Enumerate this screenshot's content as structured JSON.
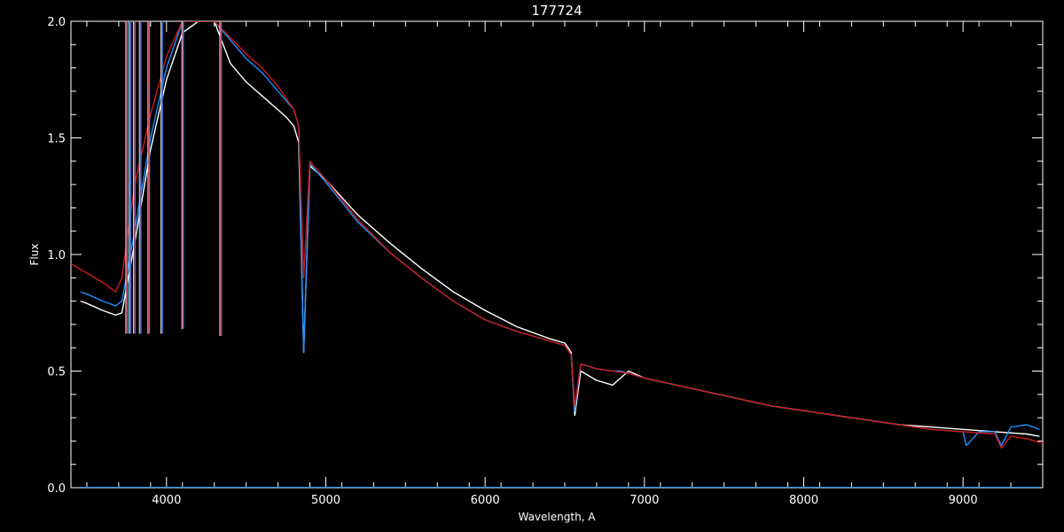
{
  "chart_data": {
    "type": "line",
    "title": "177724",
    "xlabel": "Wavelength, A",
    "ylabel": "Flux",
    "xlim": [
      3400,
      9500
    ],
    "ylim": [
      0.0,
      2.0
    ],
    "x_ticks": [
      4000,
      5000,
      6000,
      7000,
      8000,
      9000
    ],
    "x_tick_labels": [
      "4000",
      "5000",
      "6000",
      "7000",
      "8000",
      "9000"
    ],
    "y_ticks": [
      0.0,
      0.5,
      1.0,
      1.5,
      2.0
    ],
    "y_tick_labels": [
      "0.0",
      "0.5",
      "1.0",
      "1.5",
      "2.0"
    ],
    "grid": false,
    "background": "#000000",
    "series": [
      {
        "color": "#ffffff",
        "x": [
          3460,
          3500,
          3600,
          3680,
          3720,
          3760,
          3800,
          3900,
          4000,
          4100,
          4200,
          4300,
          4400,
          4500,
          4600,
          4700,
          4750,
          4800,
          4830,
          4861,
          4900,
          5000,
          5200,
          5400,
          5600,
          5800,
          6000,
          6200,
          6400,
          6500,
          6540,
          6563,
          6600,
          6700,
          6800,
          6850,
          6900,
          7000,
          7200,
          7400,
          7600,
          7800,
          8000,
          8200,
          8400,
          8500,
          8600,
          8800,
          9000,
          9200,
          9400,
          9480
        ],
        "y": [
          0.8,
          0.79,
          0.76,
          0.74,
          0.75,
          0.9,
          1.05,
          1.45,
          1.75,
          1.95,
          2.0,
          2.0,
          1.82,
          1.74,
          1.68,
          1.62,
          1.59,
          1.55,
          1.48,
          0.58,
          1.38,
          1.32,
          1.17,
          1.05,
          0.94,
          0.84,
          0.76,
          0.69,
          0.64,
          0.62,
          0.58,
          0.31,
          0.5,
          0.46,
          0.44,
          0.47,
          0.5,
          0.47,
          0.44,
          0.41,
          0.38,
          0.35,
          0.33,
          0.31,
          0.29,
          0.28,
          0.27,
          0.26,
          0.25,
          0.24,
          0.23,
          0.22
        ]
      },
      {
        "color": "#1e90ff",
        "x": [
          3460,
          3500,
          3600,
          3680,
          3720,
          3760,
          3800,
          3900,
          4000,
          4100,
          4200,
          4300,
          4400,
          4500,
          4600,
          4700,
          4750,
          4800,
          4830,
          4861,
          4900,
          5000,
          5200,
          5400,
          5600,
          5800,
          6000,
          6200,
          6400,
          6500,
          6540,
          6563,
          6600,
          6700,
          6800,
          6850,
          6900,
          7000,
          7200,
          7400,
          7600,
          7800,
          8000,
          8200,
          8400,
          8600,
          8800,
          9000,
          9020,
          9100,
          9200,
          9240,
          9300,
          9400,
          9480
        ],
        "y": [
          0.84,
          0.83,
          0.8,
          0.78,
          0.8,
          0.95,
          1.1,
          1.5,
          1.8,
          2.0,
          2.0,
          2.0,
          1.92,
          1.84,
          1.78,
          1.7,
          1.66,
          1.62,
          1.55,
          0.58,
          1.39,
          1.31,
          1.14,
          1.01,
          0.9,
          0.8,
          0.72,
          0.67,
          0.63,
          0.61,
          0.57,
          0.33,
          0.53,
          0.51,
          0.5,
          0.5,
          0.49,
          0.47,
          0.44,
          0.41,
          0.38,
          0.35,
          0.33,
          0.31,
          0.29,
          0.27,
          0.25,
          0.24,
          0.18,
          0.24,
          0.24,
          0.18,
          0.26,
          0.27,
          0.25
        ]
      },
      {
        "color": "#cc1a1a",
        "x": [
          3400,
          3500,
          3600,
          3680,
          3720,
          3760,
          3800,
          3900,
          4000,
          4100,
          4200,
          4300,
          4400,
          4500,
          4600,
          4700,
          4750,
          4800,
          4830,
          4861,
          4900,
          5000,
          5200,
          5400,
          5600,
          5800,
          6000,
          6200,
          6400,
          6500,
          6540,
          6563,
          6600,
          6700,
          6800,
          6900,
          7000,
          7200,
          7400,
          7600,
          7800,
          8000,
          8200,
          8400,
          8600,
          8800,
          9000,
          9200,
          9240,
          9300,
          9400,
          9500
        ],
        "y": [
          0.96,
          0.92,
          0.88,
          0.84,
          0.9,
          1.1,
          1.3,
          1.6,
          1.85,
          2.0,
          2.0,
          2.0,
          1.93,
          1.86,
          1.8,
          1.72,
          1.67,
          1.62,
          1.55,
          0.9,
          1.4,
          1.32,
          1.15,
          1.01,
          0.9,
          0.8,
          0.72,
          0.67,
          0.63,
          0.61,
          0.57,
          0.35,
          0.53,
          0.51,
          0.5,
          0.49,
          0.47,
          0.44,
          0.41,
          0.38,
          0.35,
          0.33,
          0.31,
          0.29,
          0.27,
          0.25,
          0.24,
          0.23,
          0.17,
          0.22,
          0.21,
          0.19
        ]
      },
      {
        "color": "#1e90ff",
        "x": [
          3460,
          9480
        ],
        "y": [
          0.0,
          0.0
        ]
      }
    ],
    "absorption_lines": [
      {
        "x": 3750,
        "depth_y": 0.66
      },
      {
        "x": 3771,
        "depth_y": 0.66
      },
      {
        "x": 3798,
        "depth_y": 0.66
      },
      {
        "x": 3835,
        "depth_y": 0.66
      },
      {
        "x": 3889,
        "depth_y": 0.66
      },
      {
        "x": 3970,
        "depth_y": 0.66
      },
      {
        "x": 4102,
        "depth_y": 0.68
      },
      {
        "x": 4340,
        "depth_y": 0.65
      }
    ]
  }
}
